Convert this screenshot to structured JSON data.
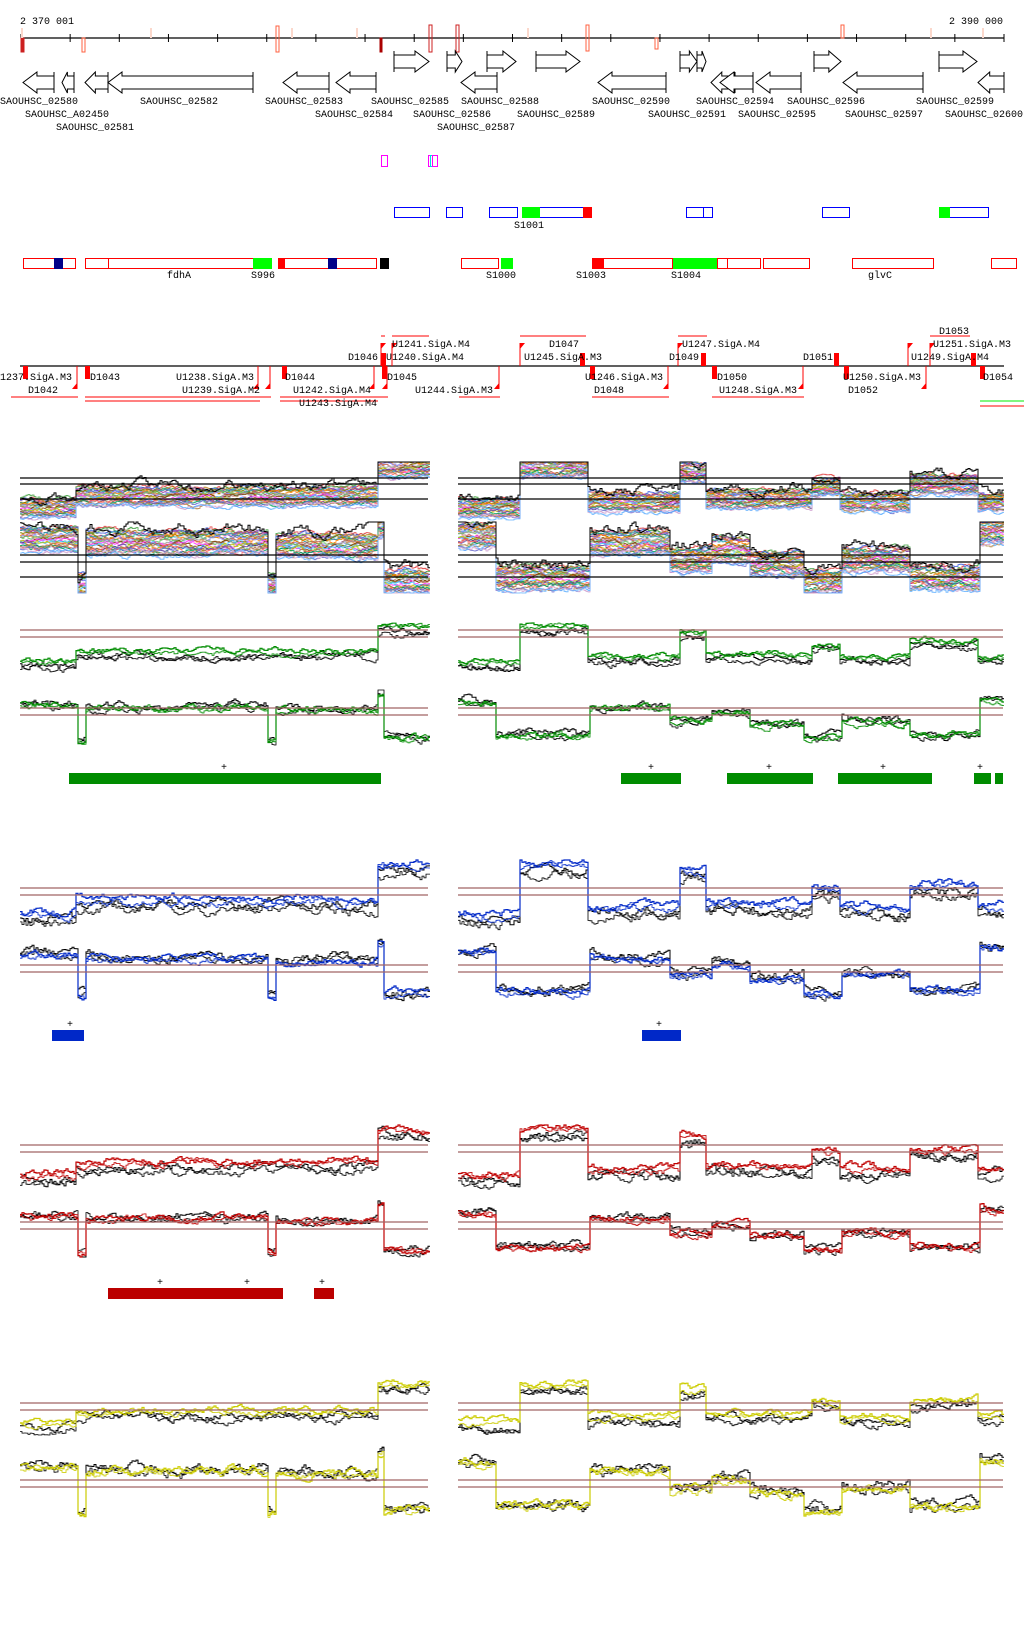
{
  "ruler": {
    "start_label": "2 370 001",
    "end_label": "2 390 000"
  },
  "genes": [
    {
      "name": "SAOUHSC_02580"
    },
    {
      "name": "SAOUHSC_A02450"
    },
    {
      "name": "SAOUHSC_02581"
    },
    {
      "name": "SAOUHSC_02582"
    },
    {
      "name": "SAOUHSC_02583"
    },
    {
      "name": "SAOUHSC_02584"
    },
    {
      "name": "SAOUHSC_02585"
    },
    {
      "name": "SAOUHSC_02586"
    },
    {
      "name": "SAOUHSC_02587"
    },
    {
      "name": "SAOUHSC_02588"
    },
    {
      "name": "SAOUHSC_02589"
    },
    {
      "name": "SAOUHSC_02590"
    },
    {
      "name": "SAOUHSC_02591"
    },
    {
      "name": "SAOUHSC_02594"
    },
    {
      "name": "SAOUHSC_02595"
    },
    {
      "name": "SAOUHSC_02596"
    },
    {
      "name": "SAOUHSC_02597"
    },
    {
      "name": "SAOUHSC_02599"
    },
    {
      "name": "SAOUHSC_02600"
    }
  ],
  "features": {
    "blue_labels": [
      "S1001"
    ],
    "red_labels": [
      "fdhA",
      "S996",
      "S1000",
      "S1003",
      "S1004",
      "glvC"
    ]
  },
  "promoters": {
    "labels": [
      "1237.SigA.M3",
      "D1042",
      "D1043",
      "U1238.SigA.M3",
      "U1239.SigA.M2",
      "D1044",
      "U1242.SigA.M4",
      "U1243.SigA.M4",
      "D1045",
      "U1244.SigA.M3",
      "D1046",
      "U1240.SigA.M4",
      "U1241.SigA.M4",
      "U1245.SigA.M3",
      "D1047",
      "D1048",
      "U1246.SigA.M3",
      "U1247.SigA.M4",
      "D1049",
      "D1050",
      "U1248.SigA.M3",
      "D1051",
      "D1052",
      "U1250.SigA.M3",
      "U1249.SigA.M4",
      "U1251.SigA.M3",
      "D1053",
      "D1054"
    ]
  },
  "tracks": {
    "plus_marker": "+",
    "colors": {
      "green": "#008c00",
      "blue": "#0028c8",
      "red": "#c00000",
      "yellow": "#cccc00",
      "reference_line": "#a06464",
      "gene_outline": "#000000",
      "feature_red": "#ff0000",
      "feature_blue": "#0000ff",
      "feature_green": "#00ff00",
      "feature_navy": "#000088",
      "feature_magenta": "#ff00ff",
      "feature_cyan": "#00e0e0"
    }
  }
}
